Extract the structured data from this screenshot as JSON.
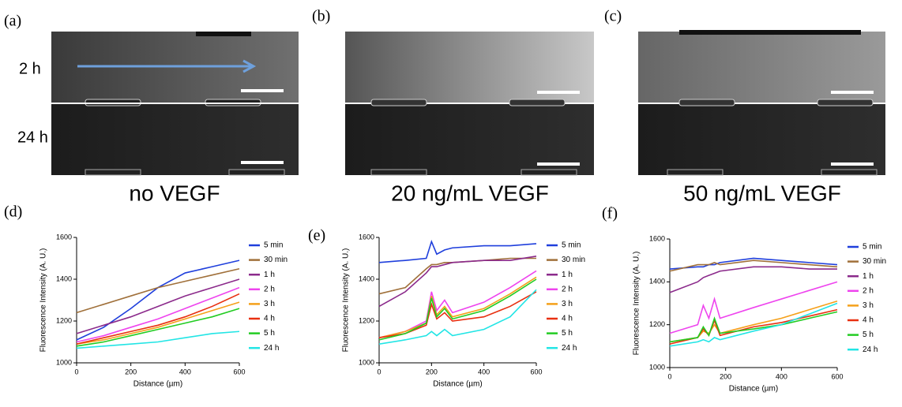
{
  "panels": [
    {
      "label": "(a)",
      "caption": "no VEGF"
    },
    {
      "label": "(b)",
      "caption": "20 ng/mL VEGF"
    },
    {
      "label": "(c)",
      "caption": "50 ng/mL VEGF"
    }
  ],
  "row_labels": [
    "2 h",
    "24 h"
  ],
  "chart_data": [
    {
      "type": "line",
      "panel_label": "(d)",
      "xlabel": "Distance (µm)",
      "ylabel": "Fluorescence Intensity (A. U.)",
      "xlim": [
        0,
        600
      ],
      "xticks": [
        0,
        200,
        400,
        600
      ],
      "ylim": [
        1000,
        1600
      ],
      "yticks": [
        1000,
        1200,
        1400,
        1600
      ],
      "x": [
        0,
        100,
        200,
        300,
        400,
        500,
        600
      ],
      "series": [
        {
          "name": "5 min",
          "color": "#1f3fdc",
          "values": [
            1110,
            1170,
            1260,
            1360,
            1430,
            1460,
            1490
          ]
        },
        {
          "name": "30 min",
          "color": "#a0703a",
          "values": [
            1240,
            1280,
            1320,
            1360,
            1390,
            1420,
            1450
          ]
        },
        {
          "name": "1 h",
          "color": "#8b2a8b",
          "values": [
            1140,
            1180,
            1220,
            1270,
            1320,
            1360,
            1400
          ]
        },
        {
          "name": "2 h",
          "color": "#ee44ee",
          "values": [
            1100,
            1130,
            1170,
            1210,
            1260,
            1310,
            1360
          ]
        },
        {
          "name": "3 h",
          "color": "#f5a01a",
          "values": [
            1090,
            1110,
            1140,
            1170,
            1210,
            1250,
            1290
          ]
        },
        {
          "name": "4 h",
          "color": "#e83010",
          "values": [
            1090,
            1120,
            1150,
            1180,
            1220,
            1270,
            1330
          ]
        },
        {
          "name": "5 h",
          "color": "#22cc22",
          "values": [
            1080,
            1100,
            1130,
            1160,
            1190,
            1220,
            1260
          ]
        },
        {
          "name": "24 h",
          "color": "#22e5e5",
          "values": [
            1070,
            1080,
            1090,
            1100,
            1120,
            1140,
            1150
          ]
        }
      ]
    },
    {
      "type": "line",
      "panel_label": "(e)",
      "xlabel": "Distance (µm)",
      "ylabel": "Fluorescence Intensity (A. U.)",
      "xlim": [
        0,
        600
      ],
      "xticks": [
        0,
        200,
        400,
        600
      ],
      "ylim": [
        1000,
        1600
      ],
      "yticks": [
        1000,
        1200,
        1400,
        1600
      ],
      "x": [
        0,
        100,
        180,
        200,
        220,
        250,
        280,
        400,
        500,
        600
      ],
      "series": [
        {
          "name": "5 min",
          "color": "#1f3fdc",
          "values": [
            1480,
            1490,
            1500,
            1580,
            1520,
            1540,
            1550,
            1560,
            1560,
            1570
          ]
        },
        {
          "name": "30 min",
          "color": "#a0703a",
          "values": [
            1330,
            1360,
            1450,
            1470,
            1470,
            1480,
            1480,
            1490,
            1500,
            1500
          ]
        },
        {
          "name": "1 h",
          "color": "#8b2a8b",
          "values": [
            1270,
            1340,
            1430,
            1460,
            1460,
            1470,
            1480,
            1490,
            1490,
            1510
          ]
        },
        {
          "name": "2 h",
          "color": "#ee44ee",
          "values": [
            1120,
            1150,
            1200,
            1340,
            1250,
            1300,
            1240,
            1290,
            1360,
            1440
          ]
        },
        {
          "name": "3 h",
          "color": "#f5a01a",
          "values": [
            1120,
            1150,
            1190,
            1320,
            1230,
            1270,
            1220,
            1260,
            1330,
            1410
          ]
        },
        {
          "name": "4 h",
          "color": "#e83010",
          "values": [
            1120,
            1140,
            1180,
            1280,
            1210,
            1240,
            1200,
            1220,
            1270,
            1340
          ]
        },
        {
          "name": "5 h",
          "color": "#22cc22",
          "values": [
            1110,
            1140,
            1190,
            1310,
            1220,
            1260,
            1210,
            1250,
            1320,
            1400
          ]
        },
        {
          "name": "24 h",
          "color": "#22e5e5",
          "values": [
            1090,
            1110,
            1130,
            1150,
            1130,
            1160,
            1130,
            1160,
            1220,
            1350
          ]
        }
      ]
    },
    {
      "type": "line",
      "panel_label": "(f)",
      "xlabel": "Distance (µm)",
      "ylabel": "Fluorescence Intensity (A. U.)",
      "xlim": [
        0,
        600
      ],
      "xticks": [
        0,
        200,
        400,
        600
      ],
      "ylim": [
        1000,
        1600
      ],
      "yticks": [
        1000,
        1200,
        1400,
        1600
      ],
      "x": [
        0,
        100,
        120,
        140,
        160,
        180,
        300,
        400,
        500,
        600
      ],
      "series": [
        {
          "name": "5 min",
          "color": "#1f3fdc",
          "values": [
            1460,
            1470,
            1470,
            1480,
            1480,
            1490,
            1510,
            1500,
            1490,
            1480
          ]
        },
        {
          "name": "30 min",
          "color": "#a0703a",
          "values": [
            1450,
            1480,
            1480,
            1480,
            1490,
            1480,
            1500,
            1490,
            1480,
            1470
          ]
        },
        {
          "name": "1 h",
          "color": "#8b2a8b",
          "values": [
            1350,
            1400,
            1420,
            1430,
            1440,
            1450,
            1470,
            1470,
            1460,
            1460
          ]
        },
        {
          "name": "2 h",
          "color": "#ee44ee",
          "values": [
            1160,
            1200,
            1290,
            1230,
            1320,
            1230,
            1280,
            1320,
            1360,
            1400
          ]
        },
        {
          "name": "3 h",
          "color": "#f5a01a",
          "values": [
            1120,
            1140,
            1170,
            1160,
            1200,
            1160,
            1200,
            1230,
            1270,
            1310
          ]
        },
        {
          "name": "4 h",
          "color": "#e83010",
          "values": [
            1110,
            1140,
            1180,
            1150,
            1220,
            1150,
            1190,
            1210,
            1240,
            1270
          ]
        },
        {
          "name": "5 h",
          "color": "#22cc22",
          "values": [
            1120,
            1140,
            1190,
            1150,
            1230,
            1160,
            1180,
            1200,
            1230,
            1260
          ]
        },
        {
          "name": "24 h",
          "color": "#22e5e5",
          "values": [
            1100,
            1120,
            1130,
            1120,
            1140,
            1130,
            1170,
            1200,
            1250,
            1300
          ]
        }
      ]
    }
  ]
}
